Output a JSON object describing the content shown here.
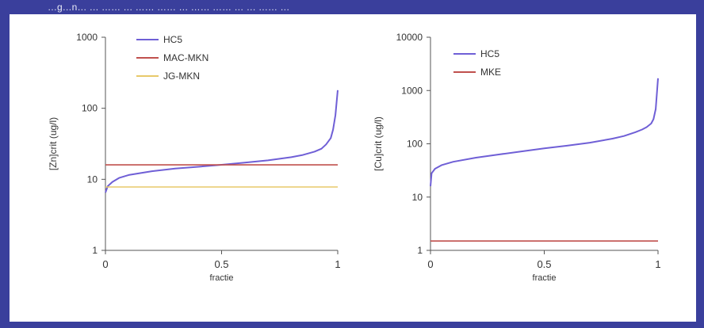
{
  "header": {
    "caption": "…g…n… … …… … …… …… … …… …… … … …… …"
  },
  "chart_data": [
    {
      "type": "line",
      "title": "",
      "xlabel": "fractie",
      "ylabel": "[Zn]crit (ug/l)",
      "xlim": [
        0,
        1
      ],
      "ylim": [
        1,
        1000
      ],
      "yscale": "log",
      "xticks": [
        "0",
        "0.5",
        "1"
      ],
      "yticks": [
        "1",
        "10",
        "100",
        "1000"
      ],
      "grid": false,
      "legend_position": "top-left",
      "series": [
        {
          "name": "HC5",
          "color": "#6f5fd6",
          "kind": "curve",
          "x": [
            0,
            0.01,
            0.03,
            0.06,
            0.1,
            0.2,
            0.3,
            0.4,
            0.5,
            0.6,
            0.7,
            0.8,
            0.85,
            0.9,
            0.93,
            0.95,
            0.97,
            0.98,
            0.99,
            1.0
          ],
          "y": [
            6.5,
            8.0,
            9.2,
            10.5,
            11.5,
            13.0,
            14.2,
            15.0,
            16.0,
            17.2,
            18.5,
            20.5,
            22.0,
            24.5,
            27,
            31,
            38,
            50,
            80,
            180
          ]
        },
        {
          "name": "MAC-MKN",
          "color": "#c0504d",
          "kind": "hline",
          "y": 16
        },
        {
          "name": "JG-MKN",
          "color": "#e8c96a",
          "kind": "hline",
          "y": 7.8
        }
      ]
    },
    {
      "type": "line",
      "title": "",
      "xlabel": "fractie",
      "ylabel": "[Cu]crit (ug/l)",
      "xlim": [
        0,
        1
      ],
      "ylim": [
        1,
        10000
      ],
      "yscale": "log",
      "xticks": [
        "0",
        "0.5",
        "1"
      ],
      "yticks": [
        "1",
        "10",
        "100",
        "1000",
        "10000"
      ],
      "grid": false,
      "legend_position": "top-left",
      "series": [
        {
          "name": "HC5",
          "color": "#6f5fd6",
          "kind": "curve",
          "x": [
            0,
            0.005,
            0.02,
            0.05,
            0.1,
            0.2,
            0.3,
            0.4,
            0.5,
            0.6,
            0.7,
            0.8,
            0.85,
            0.9,
            0.93,
            0.95,
            0.97,
            0.98,
            0.99,
            1.0
          ],
          "y": [
            16,
            28,
            34,
            40,
            46,
            55,
            63,
            72,
            82,
            92,
            105,
            125,
            140,
            165,
            185,
            205,
            240,
            290,
            450,
            1700
          ]
        },
        {
          "name": "MKE",
          "color": "#c0504d",
          "kind": "hline",
          "y": 1.5
        }
      ]
    }
  ]
}
